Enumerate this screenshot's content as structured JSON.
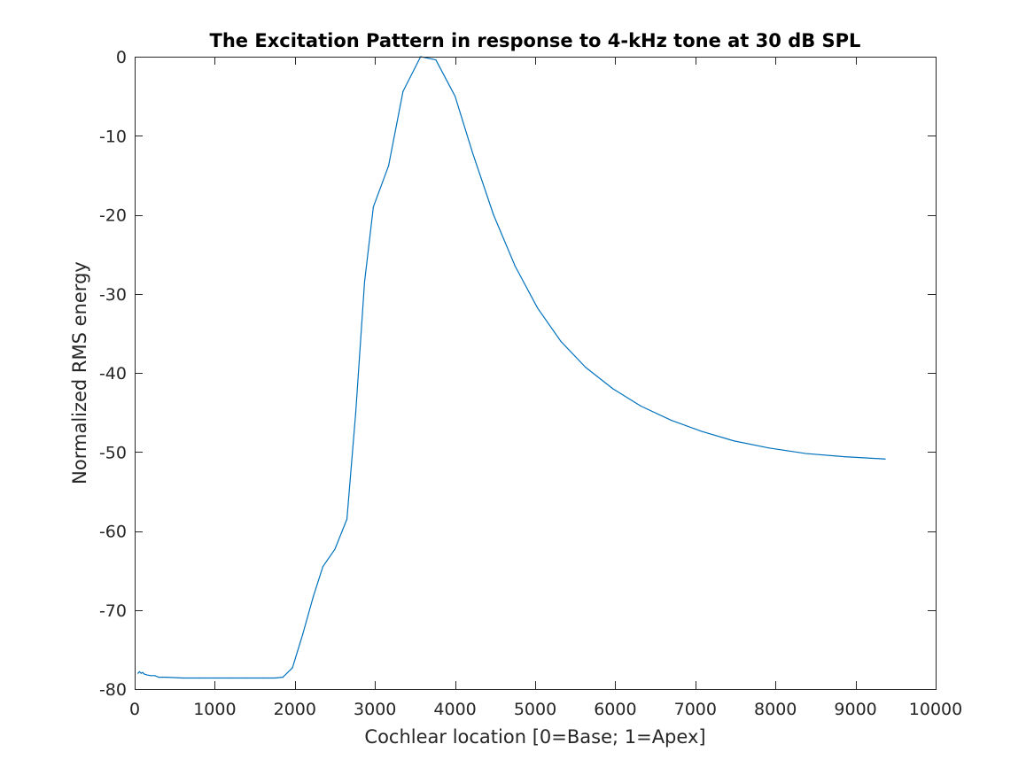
{
  "chart_data": {
    "type": "line",
    "title": "The Excitation Pattern in response to 4-kHz tone at 30 dB SPL",
    "xlabel": "Cochlear location [0=Base; 1=Apex]",
    "ylabel": "Normalized RMS energy",
    "xlim": [
      0,
      10000
    ],
    "ylim": [
      -80,
      0
    ],
    "xticks": [
      0,
      1000,
      2000,
      3000,
      4000,
      5000,
      6000,
      7000,
      8000,
      9000,
      10000
    ],
    "yticks": [
      -80,
      -70,
      -60,
      -50,
      -40,
      -30,
      -20,
      -10,
      0
    ],
    "grid": false,
    "box": true,
    "series": [
      {
        "color": "#0072bd",
        "x": [
          40,
          60,
          80,
          100,
          120,
          150,
          200,
          250,
          300,
          400,
          600,
          800,
          1000,
          1200,
          1400,
          1600,
          1750,
          1850,
          1970,
          2100,
          2230,
          2350,
          2500,
          2650,
          2760,
          2870,
          2980,
          3170,
          3350,
          3570,
          3760,
          4000,
          4220,
          4480,
          4750,
          5030,
          5320,
          5630,
          5970,
          6320,
          6700,
          7080,
          7480,
          7920,
          8380,
          8860,
          9370
        ],
        "values": [
          -78.0,
          -77.8,
          -78.0,
          -77.9,
          -78.1,
          -78.2,
          -78.3,
          -78.3,
          -78.5,
          -78.5,
          -78.6,
          -78.6,
          -78.6,
          -78.6,
          -78.6,
          -78.6,
          -78.6,
          -78.5,
          -77.3,
          -73.0,
          -68.3,
          -64.5,
          -62.3,
          -58.5,
          -45.0,
          -28.5,
          -19.0,
          -13.8,
          -4.4,
          0.0,
          -0.4,
          -5.0,
          -12.2,
          -20.0,
          -26.5,
          -31.8,
          -36.0,
          -39.3,
          -42.0,
          -44.2,
          -46.0,
          -47.4,
          -48.6,
          -49.5,
          -50.2,
          -50.6,
          -50.9
        ]
      }
    ]
  }
}
